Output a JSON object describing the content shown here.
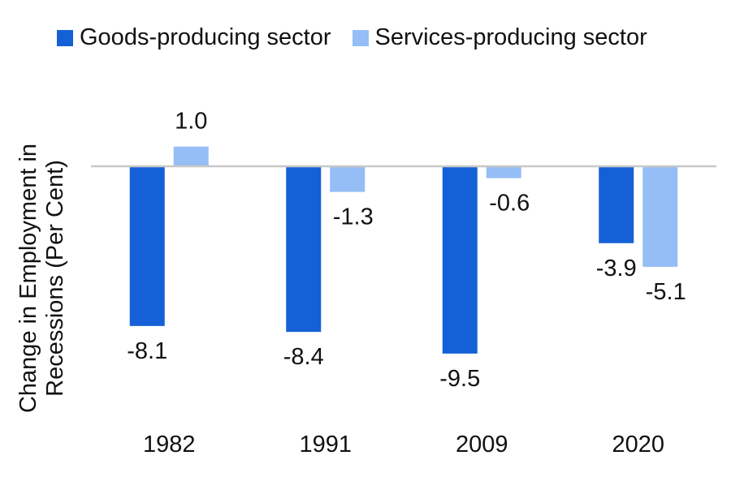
{
  "chart_data": {
    "type": "bar",
    "categories": [
      "1982",
      "1991",
      "2009",
      "2020"
    ],
    "series": [
      {
        "name": "Goods-producing sector",
        "color": "#1460d6",
        "values": [
          -8.1,
          -8.4,
          -9.5,
          -3.9
        ]
      },
      {
        "name": "Services-producing sector",
        "color": "#95bdf6",
        "values": [
          1.0,
          -1.3,
          -0.6,
          -5.1
        ]
      }
    ],
    "data_labels": [
      [
        "-8.1",
        "-8.4",
        "-9.5",
        "-3.9"
      ],
      [
        "1.0",
        "-1.3",
        "-0.6",
        "-5.1"
      ]
    ],
    "title": "",
    "xlabel": "",
    "ylabel": "Change in Employment in Recessions (Per Cent)",
    "ylim": [
      -10.5,
      1.5
    ],
    "grid": false,
    "legend_position": "top"
  }
}
